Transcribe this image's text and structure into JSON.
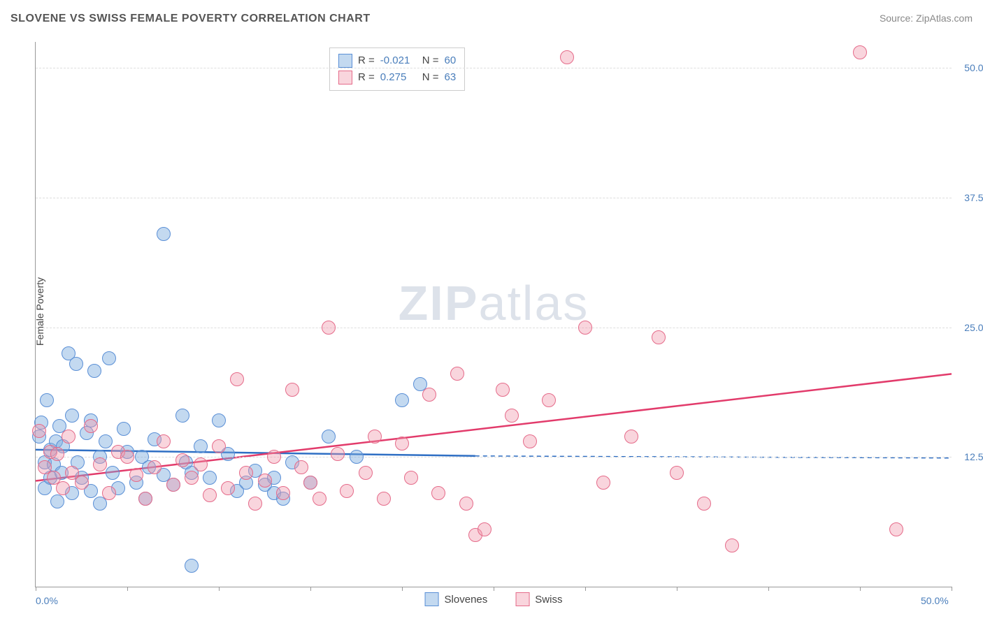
{
  "header": {
    "title": "SLOVENE VS SWISS FEMALE POVERTY CORRELATION CHART",
    "source_prefix": "Source: ",
    "source_name": "ZipAtlas.com"
  },
  "chart": {
    "type": "scatter",
    "ylabel": "Female Poverty",
    "xlim": [
      0,
      50
    ],
    "ylim": [
      0,
      52.5
    ],
    "xticks": [
      0,
      5,
      10,
      15,
      20,
      25,
      30,
      35,
      40,
      45,
      50
    ],
    "xticks_labeled": {
      "0": "0.0%",
      "50": "50.0%"
    },
    "yticks": [
      12.5,
      25.0,
      37.5,
      50.0
    ],
    "ytick_labels": [
      "12.5%",
      "25.0%",
      "37.5%",
      "50.0%"
    ],
    "grid_color": "#dddddd",
    "axis_color": "#999999",
    "background_color": "#ffffff",
    "point_radius": 9,
    "series": [
      {
        "name": "Slovenes",
        "fill": "rgba(123,170,222,0.45)",
        "stroke": "#5a8fd6",
        "r_value": "-0.021",
        "n_value": "60",
        "trend": {
          "x1": 0,
          "y1": 13.2,
          "x2": 24,
          "y2": 12.6,
          "solid_to_x": 24,
          "dash_to_x": 50,
          "dash_y": 12.4,
          "color": "#2f6fc4",
          "width": 2.5
        },
        "points": [
          [
            0.2,
            14.5
          ],
          [
            0.3,
            15.8
          ],
          [
            0.5,
            12.0
          ],
          [
            0.5,
            9.5
          ],
          [
            0.6,
            18.0
          ],
          [
            0.8,
            13.2
          ],
          [
            0.8,
            10.5
          ],
          [
            1.0,
            11.8
          ],
          [
            1.1,
            14.0
          ],
          [
            1.2,
            8.2
          ],
          [
            1.3,
            15.5
          ],
          [
            1.4,
            11.0
          ],
          [
            1.5,
            13.5
          ],
          [
            1.8,
            22.5
          ],
          [
            2.0,
            16.5
          ],
          [
            2.0,
            9.0
          ],
          [
            2.2,
            21.5
          ],
          [
            2.3,
            12.0
          ],
          [
            2.5,
            10.5
          ],
          [
            2.8,
            14.8
          ],
          [
            3.0,
            9.2
          ],
          [
            3.0,
            16.0
          ],
          [
            3.2,
            20.8
          ],
          [
            3.5,
            12.5
          ],
          [
            3.5,
            8.0
          ],
          [
            3.8,
            14.0
          ],
          [
            4.0,
            22.0
          ],
          [
            4.2,
            11.0
          ],
          [
            4.5,
            9.5
          ],
          [
            4.8,
            15.2
          ],
          [
            5.0,
            13.0
          ],
          [
            5.5,
            10.0
          ],
          [
            5.8,
            12.5
          ],
          [
            6.0,
            8.5
          ],
          [
            6.2,
            11.5
          ],
          [
            6.5,
            14.2
          ],
          [
            7.0,
            34.0
          ],
          [
            7.0,
            10.8
          ],
          [
            7.5,
            9.8
          ],
          [
            8.0,
            16.5
          ],
          [
            8.2,
            12.0
          ],
          [
            8.5,
            11.0
          ],
          [
            8.5,
            2.0
          ],
          [
            9.0,
            13.5
          ],
          [
            9.5,
            10.5
          ],
          [
            10.0,
            16.0
          ],
          [
            10.5,
            12.8
          ],
          [
            11.0,
            9.2
          ],
          [
            11.5,
            10.0
          ],
          [
            12.0,
            11.2
          ],
          [
            12.5,
            9.8
          ],
          [
            13.0,
            9.0
          ],
          [
            13.0,
            10.5
          ],
          [
            13.5,
            8.5
          ],
          [
            14.0,
            12.0
          ],
          [
            15.0,
            10.0
          ],
          [
            16.0,
            14.5
          ],
          [
            17.5,
            12.5
          ],
          [
            20.0,
            18.0
          ],
          [
            21.0,
            19.5
          ]
        ]
      },
      {
        "name": "Swiss",
        "fill": "rgba(240,150,170,0.40)",
        "stroke": "#e56b8a",
        "r_value": "0.275",
        "n_value": "63",
        "trend": {
          "x1": 0,
          "y1": 10.2,
          "x2": 50,
          "y2": 20.5,
          "solid_to_x": 50,
          "color": "#e23b6b",
          "width": 2.5
        },
        "points": [
          [
            0.2,
            15.0
          ],
          [
            0.5,
            11.5
          ],
          [
            0.8,
            13.0
          ],
          [
            1.0,
            10.5
          ],
          [
            1.2,
            12.8
          ],
          [
            1.5,
            9.5
          ],
          [
            1.8,
            14.5
          ],
          [
            2.0,
            11.0
          ],
          [
            2.5,
            10.0
          ],
          [
            3.0,
            15.5
          ],
          [
            3.5,
            11.8
          ],
          [
            4.0,
            9.0
          ],
          [
            4.5,
            13.0
          ],
          [
            5.0,
            12.5
          ],
          [
            5.5,
            10.8
          ],
          [
            6.0,
            8.5
          ],
          [
            6.5,
            11.5
          ],
          [
            7.0,
            14.0
          ],
          [
            7.5,
            9.8
          ],
          [
            8.0,
            12.2
          ],
          [
            8.5,
            10.5
          ],
          [
            9.0,
            11.8
          ],
          [
            9.5,
            8.8
          ],
          [
            10.0,
            13.5
          ],
          [
            10.5,
            9.5
          ],
          [
            11.0,
            20.0
          ],
          [
            11.5,
            11.0
          ],
          [
            12.0,
            8.0
          ],
          [
            12.5,
            10.2
          ],
          [
            13.0,
            12.5
          ],
          [
            13.5,
            9.0
          ],
          [
            14.0,
            19.0
          ],
          [
            14.5,
            11.5
          ],
          [
            15.0,
            10.0
          ],
          [
            15.5,
            8.5
          ],
          [
            16.0,
            25.0
          ],
          [
            16.5,
            12.8
          ],
          [
            17.0,
            9.2
          ],
          [
            18.0,
            11.0
          ],
          [
            18.5,
            14.5
          ],
          [
            19.0,
            8.5
          ],
          [
            20.0,
            13.8
          ],
          [
            20.5,
            10.5
          ],
          [
            21.5,
            18.5
          ],
          [
            22.0,
            9.0
          ],
          [
            23.0,
            20.5
          ],
          [
            23.5,
            8.0
          ],
          [
            24.0,
            5.0
          ],
          [
            24.5,
            5.5
          ],
          [
            25.5,
            19.0
          ],
          [
            26.0,
            16.5
          ],
          [
            27.0,
            14.0
          ],
          [
            28.0,
            18.0
          ],
          [
            29.0,
            51.0
          ],
          [
            30.0,
            25.0
          ],
          [
            31.0,
            10.0
          ],
          [
            32.5,
            14.5
          ],
          [
            34.0,
            24.0
          ],
          [
            35.0,
            11.0
          ],
          [
            36.5,
            8.0
          ],
          [
            38.0,
            4.0
          ],
          [
            45.0,
            51.5
          ],
          [
            47.0,
            5.5
          ]
        ]
      }
    ],
    "legend_bottom": [
      {
        "label": "Slovenes",
        "fill": "rgba(123,170,222,0.45)",
        "stroke": "#5a8fd6"
      },
      {
        "label": "Swiss",
        "fill": "rgba(240,150,170,0.40)",
        "stroke": "#e56b8a"
      }
    ],
    "watermark": {
      "zip": "ZIP",
      "atlas": "atlas"
    }
  }
}
